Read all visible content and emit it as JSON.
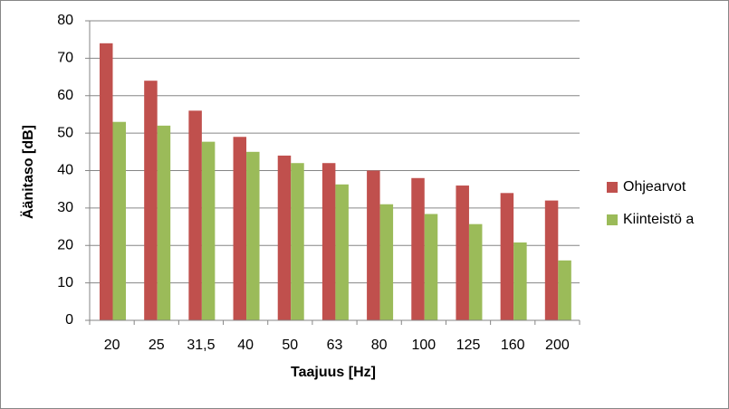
{
  "chart_data": {
    "type": "bar",
    "x_label": "Taajuus [Hz]",
    "y_label": "Äänitaso [dB]",
    "categories": [
      "20",
      "25",
      "31,5",
      "40",
      "50",
      "63",
      "80",
      "100",
      "125",
      "160",
      "200"
    ],
    "series": [
      {
        "name": "Ohjearvot",
        "color": "#c0504d",
        "values": [
          74,
          64,
          56,
          49,
          44,
          42,
          40,
          38,
          36,
          34,
          32
        ]
      },
      {
        "name": "Kiinteistö a",
        "color": "#9bbb59",
        "values": [
          53,
          52,
          47.7,
          45,
          42,
          36.3,
          31,
          28.4,
          25.7,
          20.8,
          16
        ]
      }
    ],
    "ylim": [
      0,
      80
    ],
    "yticks": [
      0,
      10,
      20,
      30,
      40,
      50,
      60,
      70,
      80
    ],
    "grid": true,
    "legend": "right"
  }
}
